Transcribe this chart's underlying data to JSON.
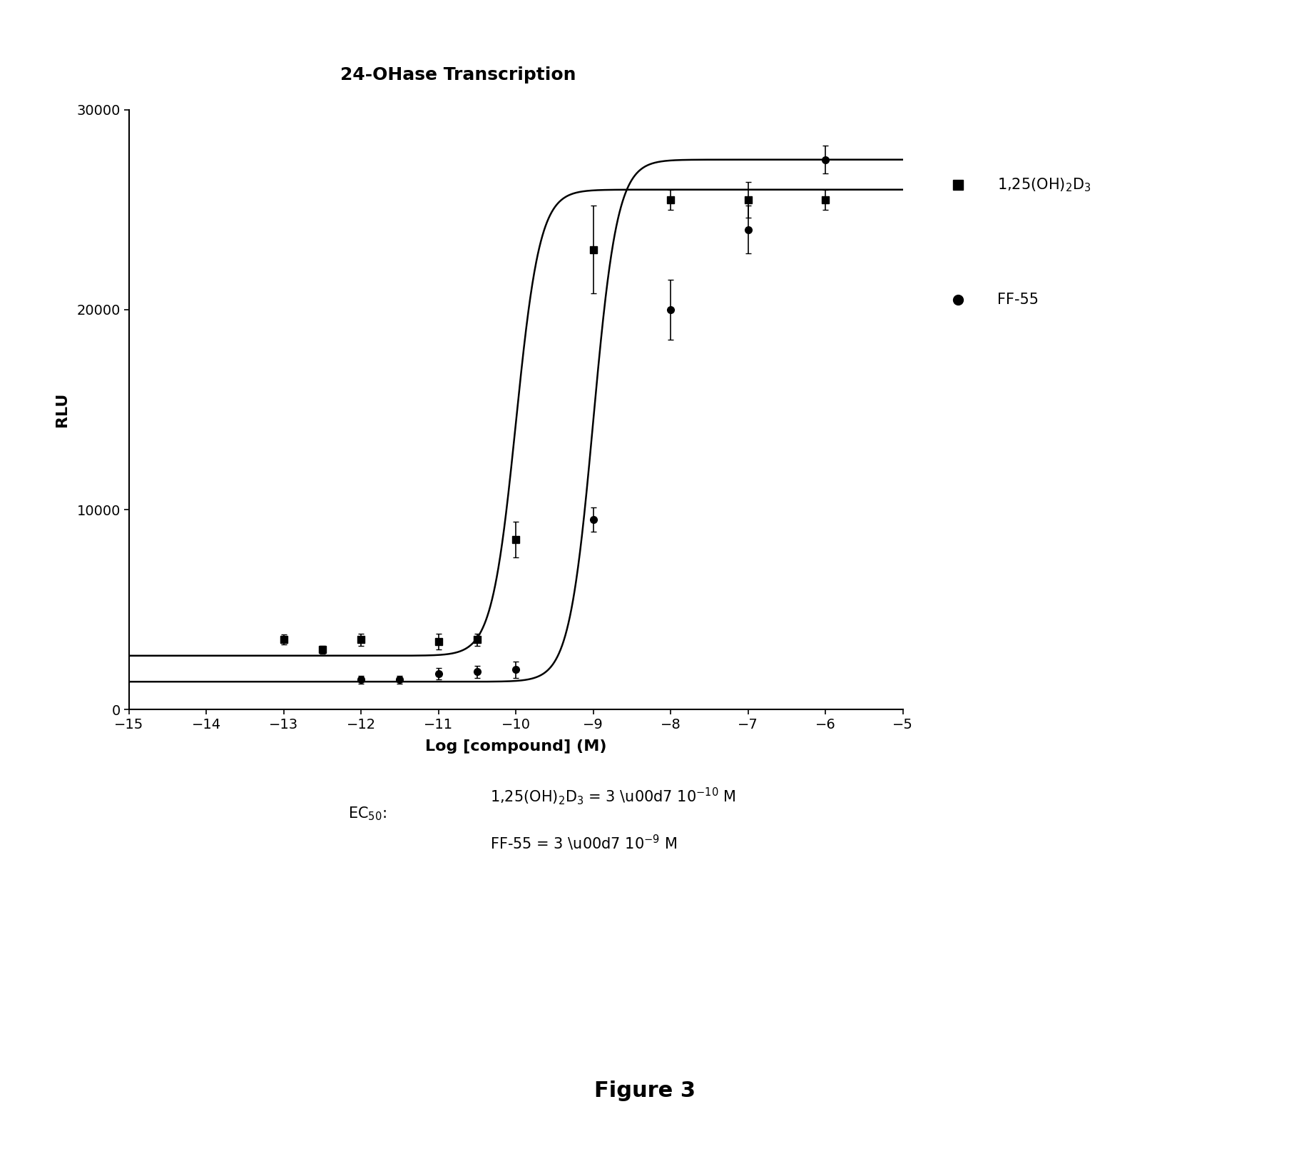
{
  "title": "24-OHase Transcription",
  "xlabel": "Log [compound] (M)",
  "ylabel": "RLU",
  "xlim": [
    -15,
    -5
  ],
  "ylim": [
    0,
    30000
  ],
  "xticks": [
    -15,
    -14,
    -13,
    -12,
    -11,
    -10,
    -9,
    -8,
    -7,
    -6,
    -5
  ],
  "yticks": [
    0,
    10000,
    20000,
    30000
  ],
  "series1_name": "1,25(OH)₂D₃",
  "series2_name": "FF-55",
  "series1_color": "#000000",
  "series2_color": "#000000",
  "series1_x": [
    -13,
    -12.5,
    -12,
    -11,
    -10.5,
    -10,
    -9,
    -8,
    -7,
    -6
  ],
  "series1_y": [
    3500,
    3000,
    3500,
    3400,
    3500,
    8500,
    23000,
    25500,
    25500,
    25500
  ],
  "series1_yerr": [
    250,
    200,
    300,
    400,
    300,
    900,
    2200,
    500,
    900,
    500
  ],
  "series2_x": [
    -12,
    -11.5,
    -11,
    -10.5,
    -10,
    -9,
    -8,
    -7,
    -6
  ],
  "series2_y": [
    1500,
    1500,
    1800,
    1900,
    2000,
    9500,
    20000,
    24000,
    27500
  ],
  "series2_yerr": [
    200,
    200,
    300,
    300,
    400,
    600,
    1500,
    1200,
    700
  ],
  "ec50_1_log": -10.0,
  "ec50_2_log": -9.0,
  "hill_1": 2.8,
  "hill_2": 2.8,
  "bottom_1": 2700,
  "top_1": 26000,
  "bottom_2": 1400,
  "top_2": 27500,
  "background_color": "#ffffff",
  "title_fontsize": 18,
  "label_fontsize": 16,
  "tick_fontsize": 14,
  "legend_fontsize": 15,
  "ec50_fontsize": 15,
  "figure_fontsize": 22
}
